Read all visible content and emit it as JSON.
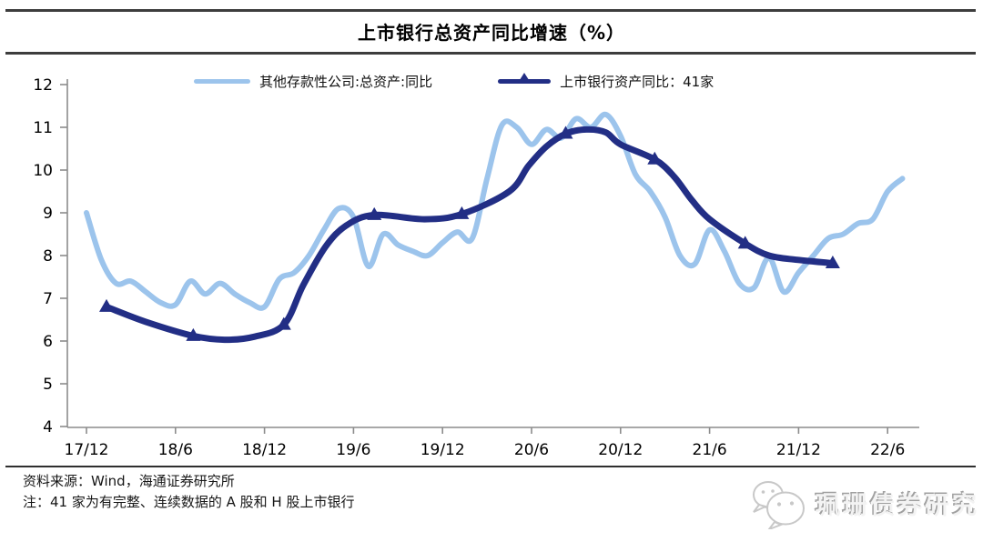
{
  "page": {
    "kind": "research-report-figure"
  },
  "footer": {
    "source": "资料来源：Wind，海通证券研究所",
    "note": "注：41 家为有完整、连续数据的 A 股和 H 股上市银行"
  },
  "logo": {
    "text": "珮珊债券研究",
    "icon": "wechat-icon",
    "style_color": "#c8c8c8"
  },
  "chart_data": {
    "type": "line",
    "title": "上市银行总资产同比增速（%）",
    "grid": false,
    "legend_position": "top-center",
    "axis_color": "#8c8c8c",
    "y_axis": {
      "min": 4,
      "max": 12,
      "step": 1,
      "ticks": [
        12,
        11,
        10,
        9,
        8,
        7,
        6,
        5,
        4
      ]
    },
    "x_axis": {
      "tick_labels": [
        "17/12",
        "18/6",
        "18/12",
        "19/6",
        "19/12",
        "20/6",
        "20/12",
        "21/6",
        "21/12",
        "22/6"
      ]
    },
    "series": [
      {
        "name": "其他存款性公司:总资产:同比",
        "color": "#9CC4EC",
        "frequency": "monthly",
        "start": "17/12",
        "end": "22/7",
        "values": [
          9.0,
          7.9,
          7.35,
          7.4,
          7.15,
          6.9,
          6.85,
          7.4,
          7.1,
          7.35,
          7.1,
          6.9,
          6.8,
          7.45,
          7.6,
          8.0,
          8.6,
          9.1,
          8.9,
          7.75,
          8.5,
          8.25,
          8.1,
          8.0,
          8.3,
          8.55,
          8.4,
          9.8,
          11.05,
          11.0,
          10.6,
          10.95,
          10.75,
          11.2,
          11.0,
          11.3,
          10.8,
          9.9,
          9.5,
          8.9,
          8.0,
          7.8,
          8.6,
          8.1,
          7.35,
          7.25,
          7.95,
          7.15,
          7.6,
          8.0,
          8.4,
          8.5,
          8.75,
          8.85,
          9.5,
          9.8
        ]
      },
      {
        "name": "上市银行资产同比：41家",
        "color": "#222E85",
        "marker": "triangle-up",
        "frequency": "semiannual",
        "dates": [
          "17/12",
          "18/6",
          "18/12",
          "19/6",
          "19/12",
          "20/6",
          "20/12",
          "21/6",
          "21/12"
        ],
        "values": [
          6.8,
          6.1,
          6.4,
          8.9,
          9.0,
          10.8,
          10.2,
          8.3,
          7.8
        ],
        "marker_pos": [
          [
            1.35,
            6.8
          ],
          [
            7.2,
            6.12
          ],
          [
            13.3,
            6.38
          ],
          [
            19.4,
            8.95
          ],
          [
            25.3,
            8.97
          ],
          [
            32.3,
            10.85
          ],
          [
            38.3,
            10.25
          ],
          [
            44.4,
            8.28
          ],
          [
            50.3,
            7.82
          ]
        ],
        "curve": [
          [
            1.35,
            6.8
          ],
          [
            4.0,
            6.45
          ],
          [
            7.2,
            6.12
          ],
          [
            9.3,
            6.03
          ],
          [
            11.3,
            6.1
          ],
          [
            13.3,
            6.38
          ],
          [
            14.6,
            7.3
          ],
          [
            16.1,
            8.2
          ],
          [
            17.5,
            8.7
          ],
          [
            19.4,
            8.95
          ],
          [
            22.8,
            8.85
          ],
          [
            25.3,
            8.97
          ],
          [
            28.5,
            9.5
          ],
          [
            29.8,
            10.1
          ],
          [
            31.0,
            10.55
          ],
          [
            32.3,
            10.85
          ],
          [
            33.7,
            10.95
          ],
          [
            35.0,
            10.88
          ],
          [
            36.0,
            10.6
          ],
          [
            38.3,
            10.25
          ],
          [
            39.6,
            9.85
          ],
          [
            40.8,
            9.3
          ],
          [
            42.0,
            8.85
          ],
          [
            44.4,
            8.28
          ],
          [
            46.0,
            8.0
          ],
          [
            47.9,
            7.9
          ],
          [
            50.3,
            7.82
          ]
        ]
      }
    ]
  }
}
